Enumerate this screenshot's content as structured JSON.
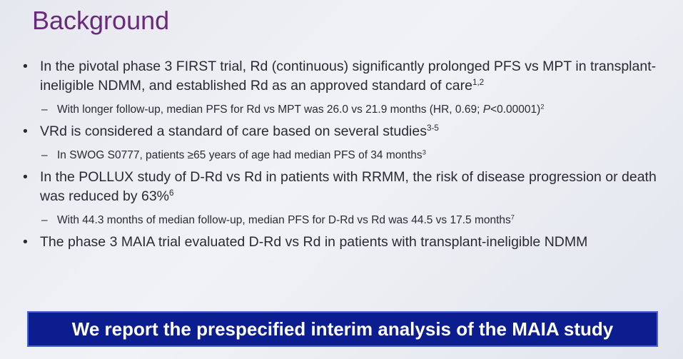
{
  "slide": {
    "title": "Background",
    "items": [
      {
        "level": 1,
        "segments": [
          {
            "text": "In the pivotal phase 3 FIRST trial, Rd (continuous) significantly prolonged PFS vs MPT in transplant-ineligible NDMM, and established Rd as an approved standard of care"
          },
          {
            "text": "1,2",
            "style": "sup"
          }
        ]
      },
      {
        "level": 2,
        "segments": [
          {
            "text": "With longer follow-up, median PFS for Rd vs MPT was 26.0 vs 21.9 months (HR, 0.69; "
          },
          {
            "text": "P",
            "style": "italic"
          },
          {
            "text": "<0.00001)"
          },
          {
            "text": "2",
            "style": "sup"
          }
        ]
      },
      {
        "level": 1,
        "segments": [
          {
            "text": "VRd is considered a standard of care based on several studies"
          },
          {
            "text": "3-5",
            "style": "sup"
          }
        ]
      },
      {
        "level": 2,
        "segments": [
          {
            "text": "In SWOG S0777, patients ≥65 years of age had median PFS of 34 months"
          },
          {
            "text": "3",
            "style": "sup"
          }
        ]
      },
      {
        "level": 1,
        "segments": [
          {
            "text": "In the POLLUX study of D-Rd vs Rd in patients with RRMM, the risk of disease progression or death was reduced by 63%"
          },
          {
            "text": "6",
            "style": "sup"
          }
        ]
      },
      {
        "level": 2,
        "segments": [
          {
            "text": "With 44.3 months of median follow-up, median PFS for D-Rd vs Rd was 44.5 vs 17.5 months"
          },
          {
            "text": "7",
            "style": "sup"
          }
        ]
      },
      {
        "level": 1,
        "segments": [
          {
            "text": "The phase 3 MAIA trial evaluated D-Rd vs Rd in patients with transplant-ineligible NDMM"
          }
        ]
      }
    ],
    "banner": "We report the prespecified interim analysis of the MAIA study"
  }
}
